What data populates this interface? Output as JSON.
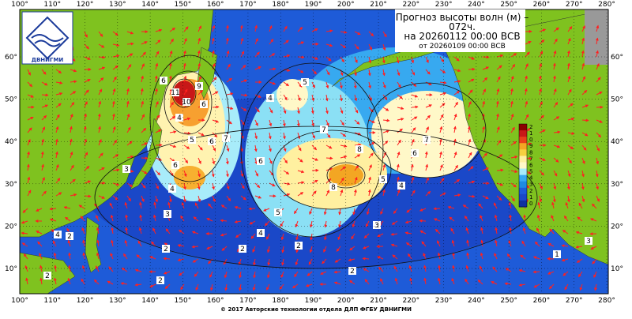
{
  "header": {
    "title_line1": "Прогноз высоты волн (м) –",
    "title_line2": "072ч.",
    "valid_line": "на 20260112 00:00 ВСВ",
    "issued_line": "от 20260109 00:00 ВСВ"
  },
  "logo": {
    "text": "ДВНИГМИ"
  },
  "footer": {
    "text": "© 2017 Авторские технологии отдела ДЛП ФГБУ ДВНИГМИ"
  },
  "longitude_labels": [
    "100°",
    "110°",
    "120°",
    "130°",
    "140°",
    "150°",
    "160°",
    "170°",
    "180°",
    "190°",
    "200°",
    "210°",
    "220°",
    "230°",
    "240°",
    "250°",
    "260°",
    "270°",
    "280°"
  ],
  "latitude_labels": [
    "60°",
    "50°",
    "40°",
    "30°",
    "20°",
    "10°"
  ],
  "colorbar_labels": [
    "2",
    "1",
    "0",
    "9",
    "8",
    "7",
    "6",
    "5",
    "4",
    "3",
    "2",
    "1",
    "0"
  ],
  "contour_labels": [
    "11",
    "10",
    "6",
    "9",
    "6",
    "8",
    "5",
    "4",
    "7",
    "6",
    "5",
    "4",
    "5",
    "6",
    "8",
    "7",
    "6",
    "4",
    "5",
    "4",
    "7",
    "6",
    "3",
    "2",
    "2",
    "3",
    "2",
    "1",
    "2",
    "3",
    "2",
    "4",
    "2",
    "2",
    "3",
    "4"
  ]
}
